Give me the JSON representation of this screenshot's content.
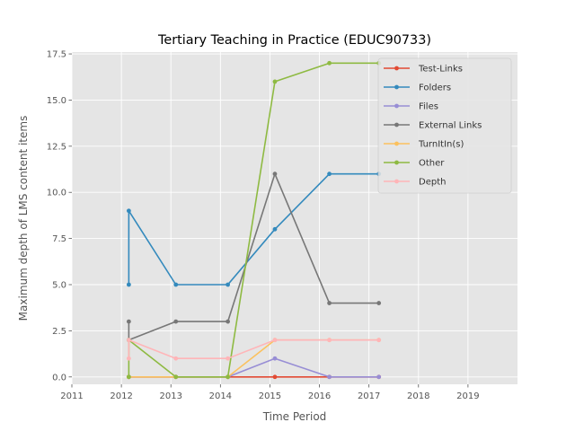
{
  "chart_data": {
    "type": "line",
    "title": "Tertiary Teaching in Practice (EDUC90733)",
    "xlabel": "Time Period",
    "ylabel": "Maximum depth of LMS content items",
    "xlim": [
      2011.0,
      2020.0
    ],
    "ylim": [
      -0.4,
      17.6
    ],
    "xticks": [
      2011,
      2012,
      2013,
      2014,
      2015,
      2016,
      2017,
      2018,
      2019
    ],
    "yticks": [
      0.0,
      2.5,
      5.0,
      7.5,
      10.0,
      12.5,
      15.0,
      17.5
    ],
    "xtick_labels": [
      "2011",
      "2012",
      "2013",
      "2014",
      "2015",
      "2016",
      "2017",
      "2018",
      "2019"
    ],
    "ytick_labels": [
      "0.0",
      "2.5",
      "5.0",
      "7.5",
      "10.0",
      "12.5",
      "15.0",
      "17.5"
    ],
    "grid": true,
    "legend_position": "top-right",
    "x": [
      2012.15,
      2012.15,
      2013.1,
      2014.15,
      2015.1,
      2016.2,
      2017.2
    ],
    "series": [
      {
        "name": "Test-Links",
        "color": "#E24A33",
        "values": [
          0,
          0,
          0,
          0,
          0,
          0,
          0
        ]
      },
      {
        "name": "Folders",
        "color": "#348ABD",
        "values": [
          5,
          9,
          5,
          5,
          8,
          11,
          11
        ]
      },
      {
        "name": "Files",
        "color": "#988ED5",
        "values": [
          0,
          0,
          0,
          0,
          1,
          0,
          0
        ]
      },
      {
        "name": "External Links",
        "color": "#777777",
        "values": [
          3,
          2,
          3,
          3,
          11,
          4,
          4
        ]
      },
      {
        "name": "TurnItIn(s)",
        "color": "#FBC15E",
        "values": [
          0,
          0,
          0,
          0,
          2,
          2,
          2
        ]
      },
      {
        "name": "Other",
        "color": "#8EBA42",
        "values": [
          0,
          2,
          0,
          0,
          16,
          17,
          17
        ]
      },
      {
        "name": "Depth",
        "color": "#FFB5B8",
        "values": [
          1,
          2,
          1,
          1,
          2,
          2,
          2
        ]
      }
    ]
  }
}
